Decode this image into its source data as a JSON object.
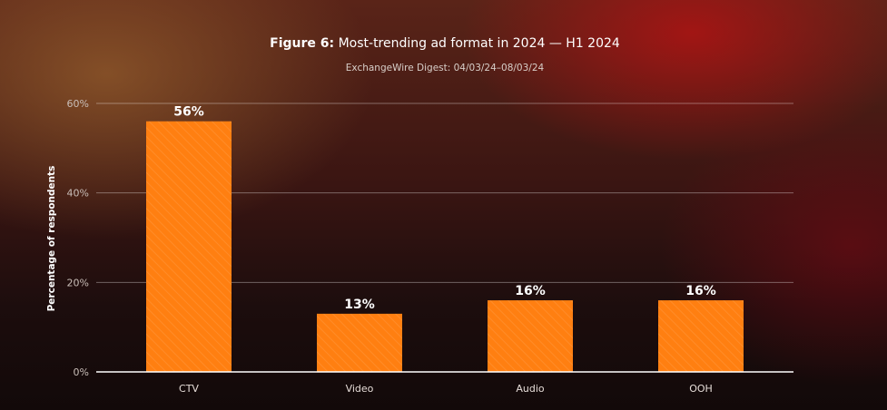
{
  "chart_data": {
    "type": "bar",
    "title_prefix": "Figure 6:",
    "title_rest": " Most-trending ad format in 2024 — H1 2024",
    "subtitle": "ExchangeWire Digest: 04/03/24–08/03/24",
    "ylabel": "Percentage of respondents",
    "xlabel": "",
    "categories": [
      "CTV",
      "Video",
      "Audio",
      "OOH"
    ],
    "values": [
      56,
      13,
      16,
      16
    ],
    "data_labels": [
      "56%",
      "13%",
      "16%",
      "16%"
    ],
    "ylim": [
      0,
      60
    ],
    "yticks": [
      {
        "value": 0,
        "label": "0%"
      },
      {
        "value": 20,
        "label": "20%"
      },
      {
        "value": 40,
        "label": "40%"
      },
      {
        "value": 60,
        "label": "60%"
      }
    ],
    "grid": true,
    "bar_color": "#ff7f11"
  }
}
